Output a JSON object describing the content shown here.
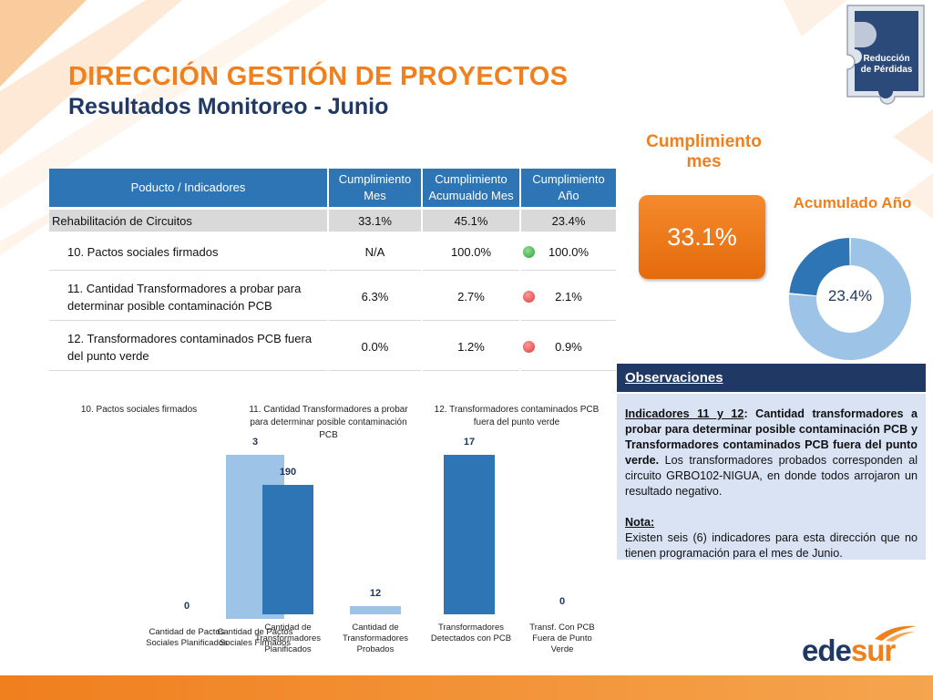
{
  "header": {
    "title": "DIRECCIÓN GESTIÓN DE PROYECTOS",
    "subtitle": "Resultados Monitoreo - Junio"
  },
  "badge": {
    "line1": "Reducción",
    "line2": "de Pérdidas"
  },
  "table": {
    "headers": [
      "Poducto / Indicadores",
      "Cumplimiento Mes",
      "Cumplimiento Acumualdo Mes",
      "Cumplimiento Año"
    ],
    "group": {
      "label": "Rehabilitación de Circuitos",
      "mes": "33.1%",
      "acum": "45.1%",
      "anio": "23.4%"
    },
    "rows": [
      {
        "label": "10. Pactos sociales firmados",
        "mes": "N/A",
        "acum": "100.0%",
        "status": "green",
        "anio": "100.0%"
      },
      {
        "label": "11. Cantidad Transformadores a probar para determinar posible contaminación PCB",
        "mes": "6.3%",
        "acum": "2.7%",
        "status": "red",
        "anio": "2.1%"
      },
      {
        "label": "12. Transformadores contaminados PCB fuera del punto verde",
        "mes": "0.0%",
        "acum": "1.2%",
        "status": "red",
        "anio": "0.9%"
      }
    ]
  },
  "cumplimiento_mes": {
    "title": "Cumplimiento mes",
    "value": "33.1%"
  },
  "acumulado_anio": {
    "title": "Acumulado Año",
    "value": "23.4%",
    "fraction": 0.234
  },
  "observaciones": {
    "heading": "Observaciones",
    "indicadores_label": "Indicadores 11 y 12",
    "indicadores_bold": ": Cantidad transformadores a probar para determinar posible contaminación PCB y Transformadores contaminados PCB fuera del punto verde.",
    "indicadores_text": " Los transformadores probados corresponden al circuito GRBO102-NIGUA, en donde todos arrojaron un resultado negativo.",
    "nota_label": "Nota:",
    "nota_text": "Existen seis (6) indicadores para esta dirección que no tienen programación para el mes de Junio."
  },
  "logo": {
    "text_a": "ede",
    "text_b": "sur"
  },
  "colors": {
    "orange": "#F07F1E",
    "navy": "#1F3864",
    "blue": "#2E75B6",
    "lightblue": "#9DC3E6"
  },
  "chart_data": [
    {
      "type": "bar",
      "title": "10. Pactos sociales firmados",
      "categories": [
        "Cantidad de Pactos Sociales Planificados",
        "Cantidad de Pactos Sociales Firmados"
      ],
      "values": [
        0,
        3
      ]
    },
    {
      "type": "bar",
      "title": "11. Cantidad Transformadores a probar para determinar posible contaminación PCB",
      "categories": [
        "Cantidad de Transformadores Planificados",
        "Cantidad de Transformadores Probados"
      ],
      "values": [
        190,
        12
      ]
    },
    {
      "type": "bar",
      "title": "12. Transformadores contaminados PCB fuera del punto verde",
      "categories": [
        "Transformadores Detectados con PCB",
        "Transf. Con PCB Fuera de Punto Verde"
      ],
      "values": [
        17,
        0
      ]
    }
  ]
}
